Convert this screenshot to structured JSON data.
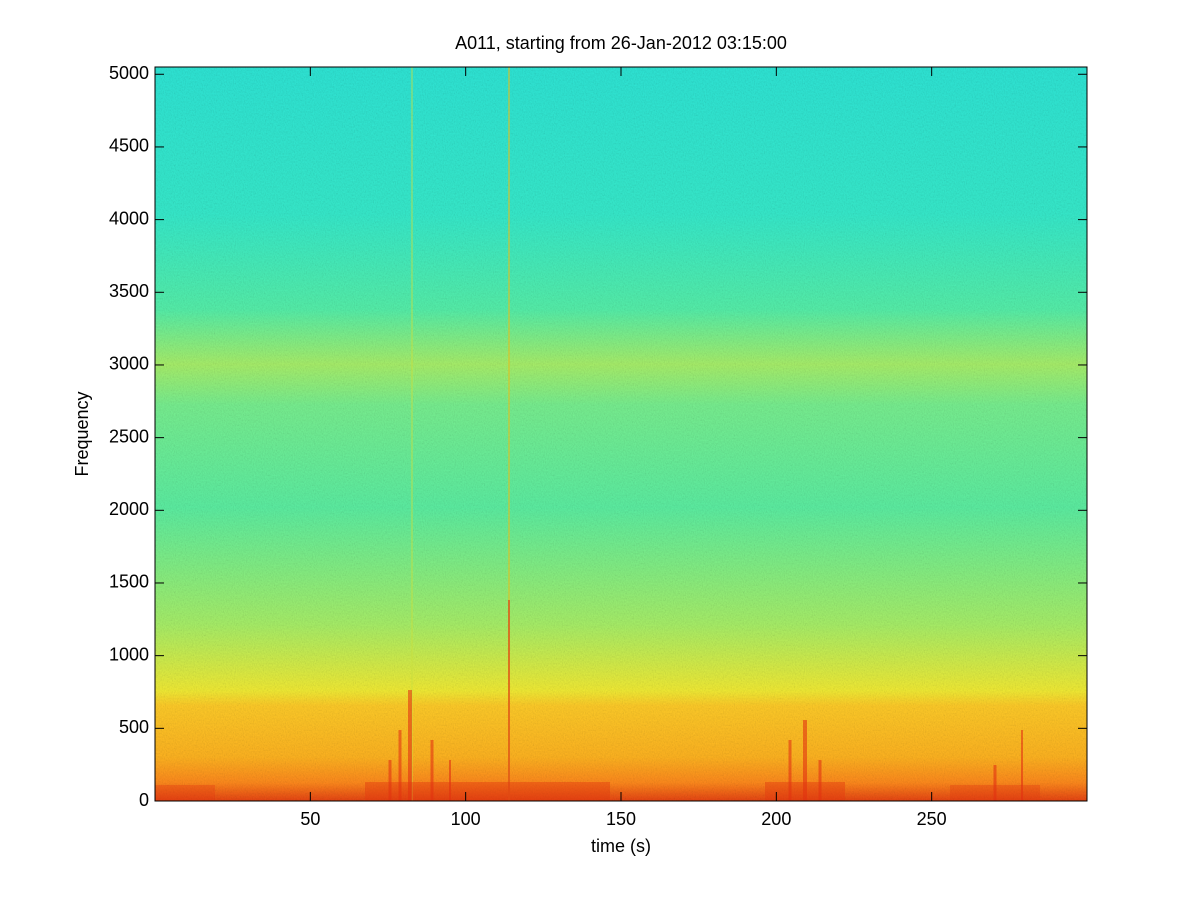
{
  "chart_data": {
    "type": "spectrogram",
    "title": "A011, starting from 26-Jan-2012 03:15:00",
    "xlabel": "time (s)",
    "ylabel": "Frequency",
    "xlim": [
      0,
      300
    ],
    "xticks": [
      50,
      100,
      150,
      200,
      250
    ],
    "ylim": [
      0,
      5050
    ],
    "yticks": [
      0,
      500,
      1000,
      1500,
      2000,
      2500,
      3000,
      3500,
      4000,
      4500,
      5000
    ]
  }
}
